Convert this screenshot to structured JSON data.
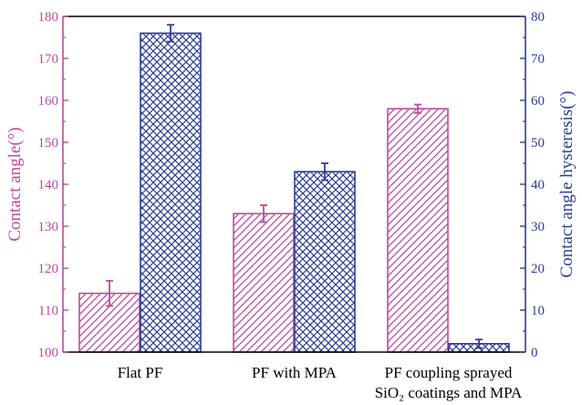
{
  "chart_data": {
    "type": "bar",
    "categories": [
      {
        "lines": [
          "Flat PF"
        ]
      },
      {
        "lines": [
          "PF with MPA"
        ]
      },
      {
        "lines": [
          "PF coupling sprayed",
          "SiO₂ coatings and MPA"
        ]
      }
    ],
    "series": [
      {
        "name": "Contact angle",
        "axis": "left",
        "color": "#c0499c",
        "pattern": "diagonal",
        "values": [
          114,
          133,
          158
        ],
        "errors": [
          3,
          2,
          1
        ]
      },
      {
        "name": "Contact angle hysteresis",
        "axis": "right",
        "color": "#2c3e96",
        "pattern": "crosshatch",
        "values": [
          76,
          43,
          2
        ],
        "errors": [
          2,
          2,
          1
        ]
      }
    ],
    "y_left": {
      "label": "Contact angle(°)",
      "min": 100,
      "max": 180,
      "ticks": [
        "100",
        "110",
        "120",
        "130",
        "140",
        "150",
        "160",
        "170",
        "180"
      ]
    },
    "y_right": {
      "label": "Contact angle hysteresis(°)",
      "min": 0,
      "max": 80,
      "ticks": [
        "0",
        "10",
        "20",
        "30",
        "40",
        "50",
        "60",
        "70",
        "80"
      ]
    },
    "grid": false,
    "legend": "none"
  }
}
